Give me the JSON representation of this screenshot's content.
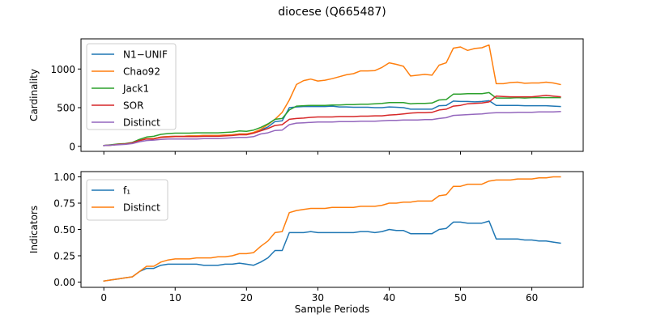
{
  "figure": {
    "title": "diocese (Q665487)",
    "shared_xlabel": "Sample Periods"
  },
  "colors": {
    "blue": "#1f77b4",
    "orange": "#ff7f0e",
    "green": "#2ca02c",
    "red": "#d62728",
    "purple": "#9467bd"
  },
  "chart_data": [
    {
      "type": "line",
      "title": "diocese (Q665487)",
      "xlabel": "",
      "ylabel": "Cardinality",
      "xlim": [
        -3.2,
        67.2
      ],
      "ylim": [
        -65,
        1390
      ],
      "xticks": [
        0,
        10,
        20,
        30,
        40,
        50,
        60
      ],
      "xtick_labels_visible": false,
      "yticks": [
        0,
        500,
        1000
      ],
      "ytick_labels": [
        "0",
        "500",
        "1000"
      ],
      "grid": false,
      "legend_position": "upper-left",
      "x": [
        0,
        1,
        2,
        3,
        4,
        5,
        6,
        7,
        8,
        9,
        10,
        11,
        12,
        13,
        14,
        15,
        16,
        17,
        18,
        19,
        20,
        21,
        22,
        23,
        24,
        25,
        26,
        27,
        28,
        29,
        30,
        31,
        32,
        33,
        34,
        35,
        36,
        37,
        38,
        39,
        40,
        41,
        42,
        43,
        44,
        45,
        46,
        47,
        48,
        49,
        50,
        51,
        52,
        53,
        54,
        55,
        56,
        57,
        58,
        59,
        60,
        61,
        62,
        63,
        64
      ],
      "series": [
        {
          "name": "N1−UNIF",
          "color": "#1f77b4",
          "values": [
            10,
            15,
            25,
            30,
            45,
            75,
            100,
            100,
            120,
            125,
            130,
            130,
            135,
            135,
            140,
            140,
            140,
            145,
            150,
            160,
            160,
            175,
            210,
            250,
            320,
            330,
            500,
            510,
            515,
            515,
            515,
            515,
            520,
            510,
            510,
            505,
            505,
            505,
            500,
            500,
            510,
            505,
            500,
            480,
            480,
            480,
            480,
            525,
            530,
            585,
            580,
            580,
            575,
            580,
            590,
            530,
            530,
            530,
            530,
            525,
            525,
            525,
            525,
            520,
            515
          ]
        },
        {
          "name": "Chao92",
          "color": "#ff7f0e",
          "values": [
            10,
            15,
            25,
            30,
            45,
            75,
            100,
            100,
            120,
            125,
            130,
            130,
            135,
            135,
            140,
            140,
            140,
            145,
            150,
            160,
            160,
            180,
            220,
            280,
            350,
            440,
            600,
            800,
            850,
            870,
            845,
            855,
            875,
            900,
            925,
            940,
            975,
            975,
            980,
            1020,
            1080,
            1060,
            1035,
            910,
            920,
            930,
            920,
            1050,
            1080,
            1270,
            1285,
            1240,
            1265,
            1275,
            1310,
            810,
            810,
            825,
            830,
            815,
            820,
            820,
            830,
            820,
            800
          ]
        },
        {
          "name": "Jack1",
          "color": "#2ca02c",
          "values": [
            10,
            20,
            30,
            35,
            50,
            90,
            120,
            130,
            155,
            165,
            170,
            170,
            170,
            175,
            175,
            175,
            175,
            180,
            185,
            200,
            195,
            210,
            245,
            290,
            350,
            360,
            470,
            520,
            525,
            530,
            530,
            530,
            535,
            535,
            540,
            540,
            545,
            545,
            550,
            555,
            565,
            565,
            565,
            550,
            555,
            555,
            560,
            600,
            605,
            675,
            675,
            680,
            680,
            680,
            695,
            625,
            625,
            625,
            630,
            625,
            630,
            630,
            630,
            630,
            630
          ]
        },
        {
          "name": "SOR",
          "color": "#d62728",
          "values": [
            10,
            15,
            25,
            30,
            45,
            75,
            95,
            95,
            115,
            120,
            125,
            125,
            125,
            125,
            130,
            130,
            130,
            135,
            140,
            150,
            150,
            170,
            200,
            230,
            270,
            280,
            350,
            360,
            365,
            375,
            380,
            380,
            380,
            385,
            385,
            385,
            390,
            390,
            395,
            395,
            405,
            410,
            420,
            430,
            435,
            435,
            440,
            470,
            480,
            520,
            530,
            550,
            555,
            560,
            575,
            650,
            645,
            640,
            640,
            640,
            640,
            650,
            660,
            650,
            640
          ]
        },
        {
          "name": "Distinct",
          "color": "#9467bd",
          "values": [
            10,
            15,
            20,
            25,
            35,
            60,
            75,
            80,
            90,
            95,
            95,
            95,
            95,
            95,
            100,
            100,
            100,
            105,
            110,
            115,
            115,
            125,
            160,
            175,
            205,
            210,
            280,
            300,
            305,
            310,
            315,
            315,
            315,
            320,
            320,
            320,
            325,
            325,
            325,
            330,
            335,
            335,
            340,
            340,
            340,
            345,
            345,
            360,
            370,
            400,
            405,
            410,
            415,
            420,
            430,
            435,
            435,
            435,
            440,
            440,
            440,
            445,
            445,
            445,
            450
          ]
        }
      ]
    },
    {
      "type": "line",
      "xlabel": "Sample Periods",
      "ylabel": "Indicators",
      "xlim": [
        -3.2,
        67.2
      ],
      "ylim": [
        -0.05,
        1.05
      ],
      "xticks": [
        0,
        10,
        20,
        30,
        40,
        50,
        60
      ],
      "xtick_labels": [
        "0",
        "10",
        "20",
        "30",
        "40",
        "50",
        "60"
      ],
      "yticks": [
        0.0,
        0.25,
        0.5,
        0.75,
        1.0
      ],
      "ytick_labels": [
        "0.00",
        "0.25",
        "0.50",
        "0.75",
        "1.00"
      ],
      "grid": false,
      "legend_position": "upper-left",
      "x": [
        0,
        1,
        2,
        3,
        4,
        5,
        6,
        7,
        8,
        9,
        10,
        11,
        12,
        13,
        14,
        15,
        16,
        17,
        18,
        19,
        20,
        21,
        22,
        23,
        24,
        25,
        26,
        27,
        28,
        29,
        30,
        31,
        32,
        33,
        34,
        35,
        36,
        37,
        38,
        39,
        40,
        41,
        42,
        43,
        44,
        45,
        46,
        47,
        48,
        49,
        50,
        51,
        52,
        53,
        54,
        55,
        56,
        57,
        58,
        59,
        60,
        61,
        62,
        63,
        64
      ],
      "series": [
        {
          "name": "f₁",
          "color": "#1f77b4",
          "values": [
            0.01,
            0.02,
            0.03,
            0.04,
            0.05,
            0.1,
            0.13,
            0.13,
            0.16,
            0.17,
            0.17,
            0.17,
            0.17,
            0.17,
            0.16,
            0.16,
            0.16,
            0.17,
            0.17,
            0.18,
            0.17,
            0.16,
            0.19,
            0.23,
            0.3,
            0.3,
            0.47,
            0.47,
            0.47,
            0.48,
            0.47,
            0.47,
            0.47,
            0.47,
            0.47,
            0.47,
            0.48,
            0.48,
            0.47,
            0.48,
            0.5,
            0.49,
            0.49,
            0.46,
            0.46,
            0.46,
            0.46,
            0.5,
            0.51,
            0.57,
            0.57,
            0.56,
            0.56,
            0.56,
            0.58,
            0.41,
            0.41,
            0.41,
            0.41,
            0.4,
            0.4,
            0.39,
            0.39,
            0.38,
            0.37
          ]
        },
        {
          "name": "Distinct",
          "color": "#ff7f0e",
          "values": [
            0.01,
            0.02,
            0.03,
            0.04,
            0.05,
            0.1,
            0.15,
            0.15,
            0.19,
            0.21,
            0.22,
            0.22,
            0.22,
            0.23,
            0.23,
            0.23,
            0.24,
            0.24,
            0.25,
            0.27,
            0.27,
            0.28,
            0.34,
            0.39,
            0.47,
            0.48,
            0.66,
            0.68,
            0.69,
            0.7,
            0.7,
            0.7,
            0.71,
            0.71,
            0.71,
            0.71,
            0.72,
            0.72,
            0.72,
            0.73,
            0.75,
            0.75,
            0.76,
            0.76,
            0.77,
            0.77,
            0.77,
            0.82,
            0.83,
            0.91,
            0.91,
            0.93,
            0.93,
            0.93,
            0.96,
            0.97,
            0.97,
            0.97,
            0.98,
            0.98,
            0.98,
            0.99,
            0.99,
            1.0,
            1.0
          ]
        }
      ]
    }
  ]
}
